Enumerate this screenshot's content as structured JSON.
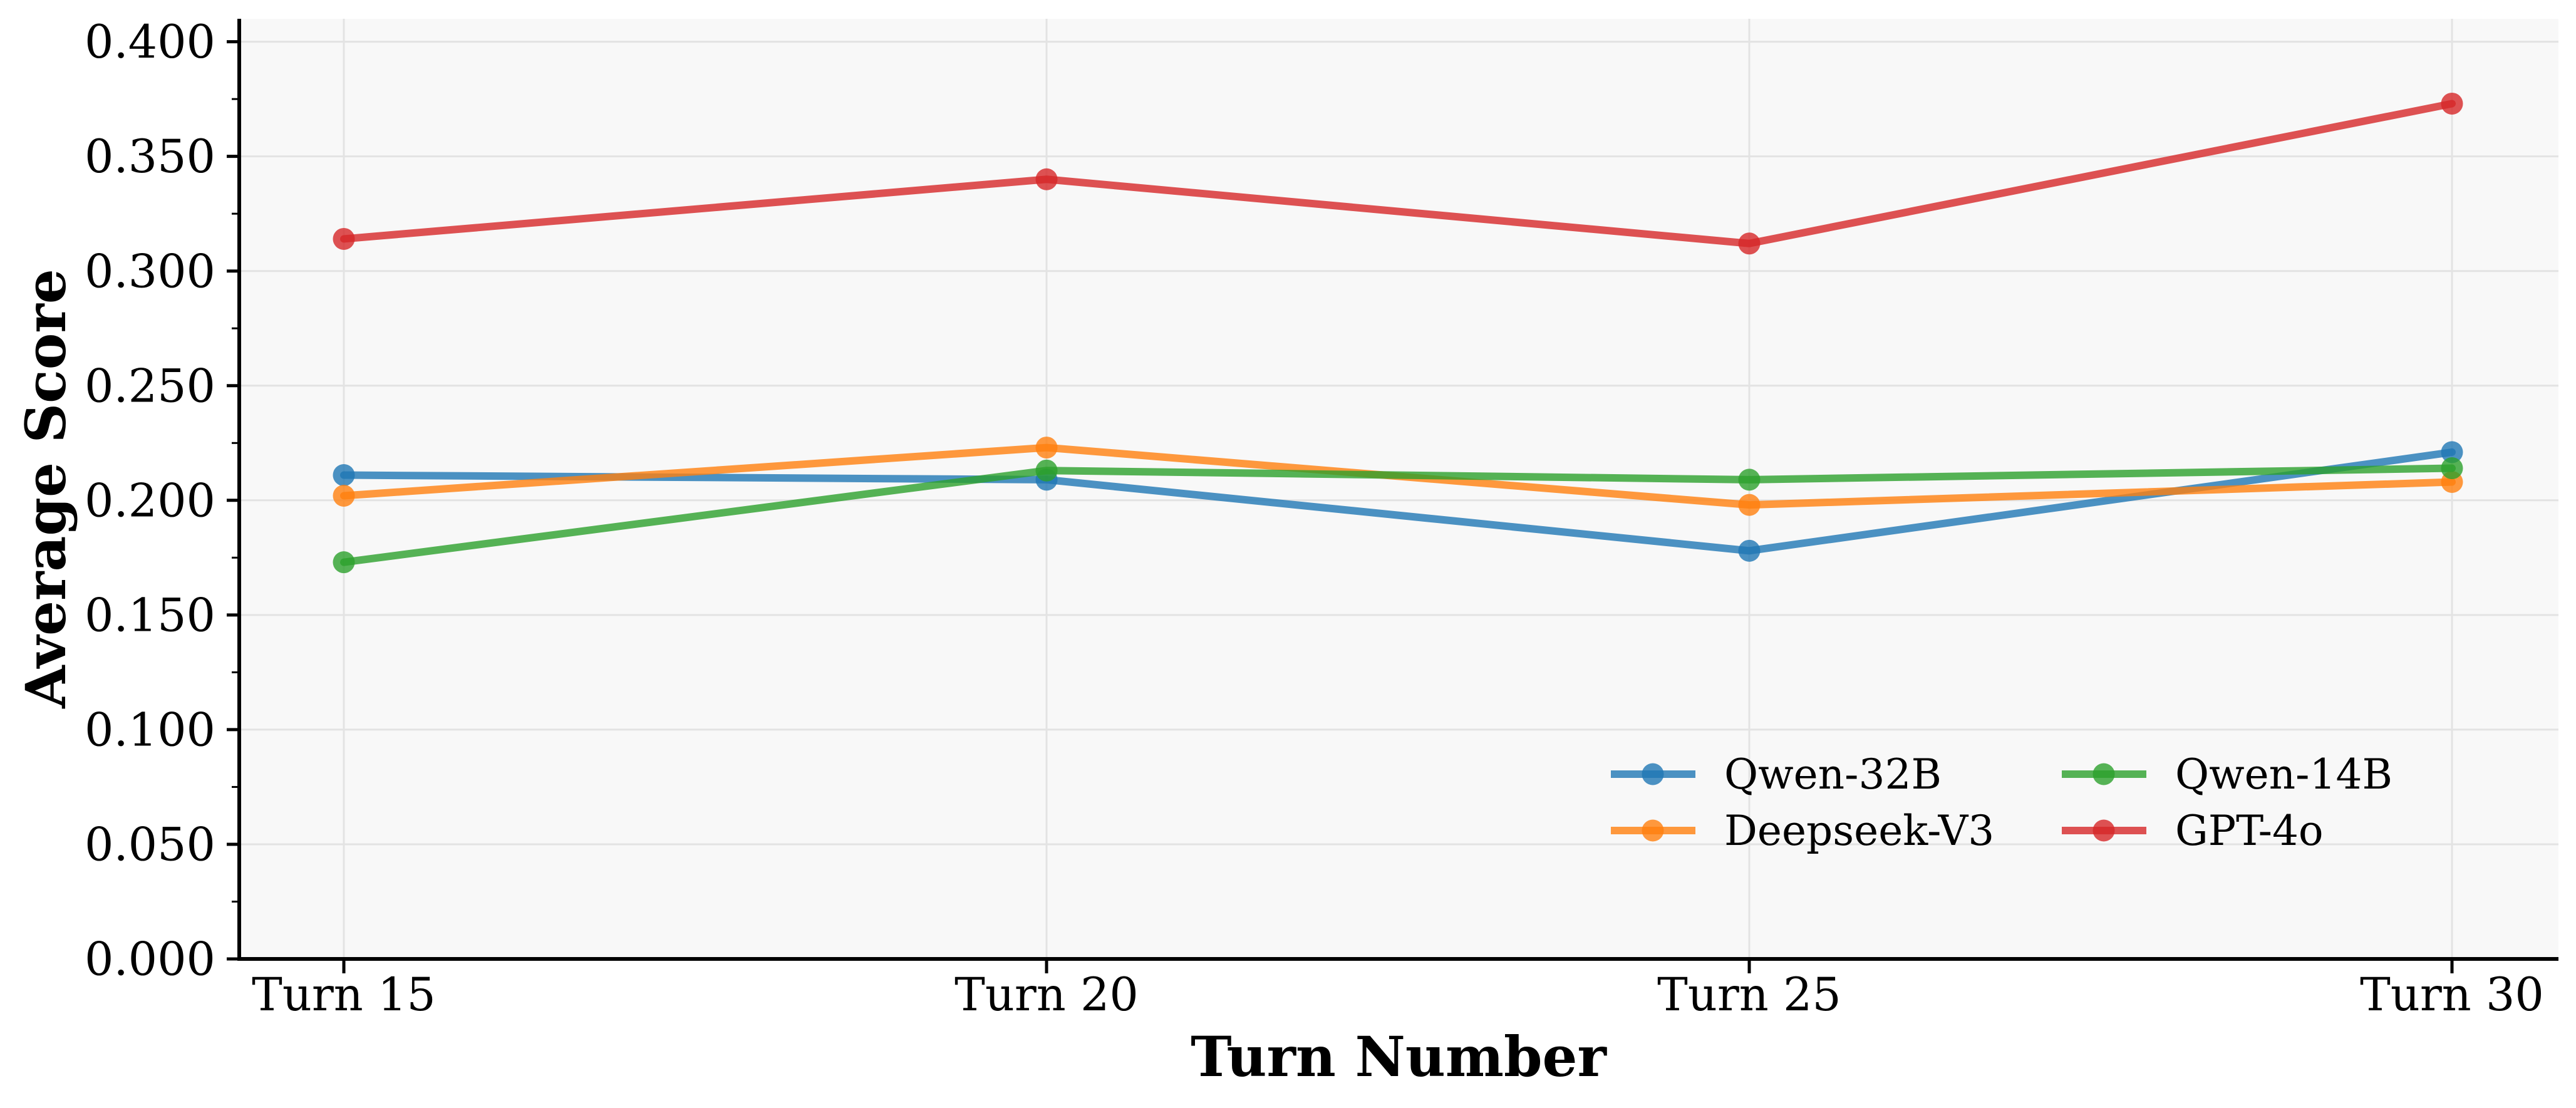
{
  "chart_data": {
    "type": "line",
    "title": "",
    "xlabel": "Turn Number",
    "ylabel": "Average Score",
    "categories": [
      "Turn 15",
      "Turn 20",
      "Turn 25",
      "Turn 30"
    ],
    "x": [
      15,
      20,
      25,
      30
    ],
    "series": [
      {
        "name": "Qwen-32B",
        "color": "#1f77b4",
        "values": [
          0.211,
          0.209,
          0.178,
          0.221
        ]
      },
      {
        "name": "Deepseek-V3",
        "color": "#ff7f0e",
        "values": [
          0.202,
          0.223,
          0.198,
          0.208
        ]
      },
      {
        "name": "Qwen-14B",
        "color": "#2ca02c",
        "values": [
          0.173,
          0.213,
          0.209,
          0.214
        ]
      },
      {
        "name": "GPT-4o",
        "color": "#d62728",
        "values": [
          0.314,
          0.34,
          0.312,
          0.373
        ]
      }
    ],
    "ylim": [
      0.0,
      0.41
    ],
    "yticks": [
      0.0,
      0.05,
      0.1,
      0.15,
      0.2,
      0.25,
      0.3,
      0.35,
      0.4
    ],
    "ytick_labels": [
      "0.000",
      "0.050",
      "0.100",
      "0.150",
      "0.200",
      "0.250",
      "0.300",
      "0.350",
      "0.400"
    ],
    "grid": true,
    "legend_position": "lower right",
    "legend_columns": 2,
    "line_opacity": 0.8,
    "colors": {
      "plot_background": "#f8f8f8",
      "gridline": "#e3e3e3",
      "axis": "#000000",
      "text": "#000000"
    }
  }
}
